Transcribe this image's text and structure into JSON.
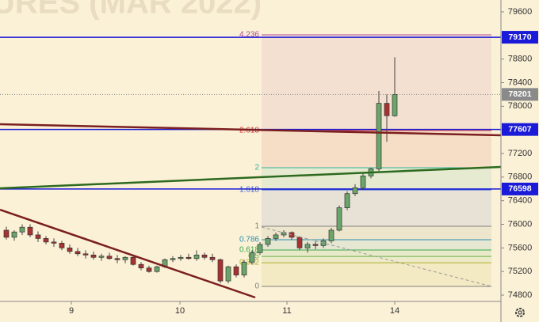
{
  "chart_data": {
    "type": "candlestick",
    "title": "URES (MAR 2022)",
    "ylim": [
      74693,
      79801
    ],
    "yticks": [
      74800,
      75200,
      75600,
      76000,
      76400,
      76800,
      77200,
      77600,
      78000,
      78400,
      78800,
      79200,
      79600
    ],
    "xlim": [
      -0.8,
      62.4
    ],
    "xticks": [
      {
        "value": 8.2,
        "label": "9"
      },
      {
        "value": 21.9,
        "label": "10"
      },
      {
        "value": 35.4,
        "label": "11"
      },
      {
        "value": 49,
        "label": "14"
      }
    ],
    "up_color": "#6aa56a",
    "down_color": "#a83232",
    "open": [
      75900,
      75780,
      75870,
      75950,
      75820,
      75760,
      75700,
      75680,
      75600,
      75540,
      75500,
      75480,
      75440,
      75460,
      75420,
      75400,
      75440,
      75320,
      75260,
      75200,
      75280,
      75400,
      75420,
      75440,
      75420,
      75480,
      75440,
      75400,
      75040,
      75280,
      75140,
      75360,
      75520,
      75660,
      75760,
      75820,
      75860,
      75780,
      75600,
      75660,
      75640,
      75720,
      75900,
      76280,
      76520,
      76620,
      76820,
      76940,
      78050,
      77840
    ],
    "high": [
      75960,
      75900,
      76000,
      76000,
      75880,
      75800,
      75760,
      75720,
      75660,
      75600,
      75560,
      75540,
      75500,
      75520,
      75480,
      75460,
      75480,
      75360,
      75300,
      75300,
      75420,
      75460,
      75480,
      75500,
      75560,
      75520,
      75500,
      75420,
      75300,
      75320,
      75400,
      75560,
      75700,
      75800,
      75860,
      75900,
      75880,
      75800,
      75700,
      75720,
      75760,
      75940,
      76320,
      76560,
      76680,
      76860,
      76960,
      78260,
      78200,
      78830
    ],
    "low": [
      75740,
      75720,
      75820,
      75780,
      75700,
      75660,
      75620,
      75560,
      75500,
      75460,
      75420,
      75400,
      75380,
      75400,
      75340,
      75340,
      75300,
      75220,
      75180,
      75180,
      75260,
      75360,
      75380,
      75400,
      75380,
      75400,
      75360,
      75000,
      75000,
      75100,
      75100,
      75320,
      75480,
      75620,
      75720,
      75780,
      75740,
      75560,
      75520,
      75580,
      75600,
      75680,
      75880,
      76240,
      76480,
      76580,
      76780,
      76900,
      77400,
      77820
    ],
    "close": [
      75780,
      75870,
      75950,
      75820,
      75760,
      75700,
      75680,
      75600,
      75540,
      75500,
      75480,
      75440,
      75460,
      75420,
      75400,
      75440,
      75320,
      75260,
      75200,
      75280,
      75400,
      75420,
      75440,
      75420,
      75480,
      75440,
      75400,
      75040,
      75280,
      75140,
      75360,
      75520,
      75660,
      75760,
      75820,
      75860,
      75780,
      75600,
      75660,
      75640,
      75720,
      75900,
      76280,
      76520,
      76620,
      76820,
      76940,
      78050,
      77840,
      78201
    ],
    "levels": {
      "color": "#1a1ad8",
      "values": [
        79170,
        77607,
        76598
      ]
    },
    "last_price": {
      "color": "#8a8a8a",
      "value": 78201
    },
    "fib": [
      {
        "label": "4.236",
        "value": 79211,
        "color": "#b04a9a"
      },
      {
        "label": "2.618",
        "value": 77589,
        "color": "#d23a3a"
      },
      {
        "label": "2",
        "value": 76958,
        "color": "#2fb59a"
      },
      {
        "label": "1.618",
        "value": 76583,
        "color": "#3a5fd2"
      },
      {
        "label": "1",
        "value": 75966,
        "color": "#808080"
      },
      {
        "label": "0.786",
        "value": 75738,
        "color": "#2a8fb0"
      },
      {
        "label": "0.618",
        "value": 75564,
        "color": "#3aa84a"
      },
      {
        "label": "0.5",
        "value": 75456,
        "color": "#6ab04a"
      },
      {
        "label": "0.382",
        "value": 75349,
        "color": "#b0b02a"
      },
      {
        "label": "0",
        "value": 74947,
        "color": "#808080"
      }
    ]
  }
}
